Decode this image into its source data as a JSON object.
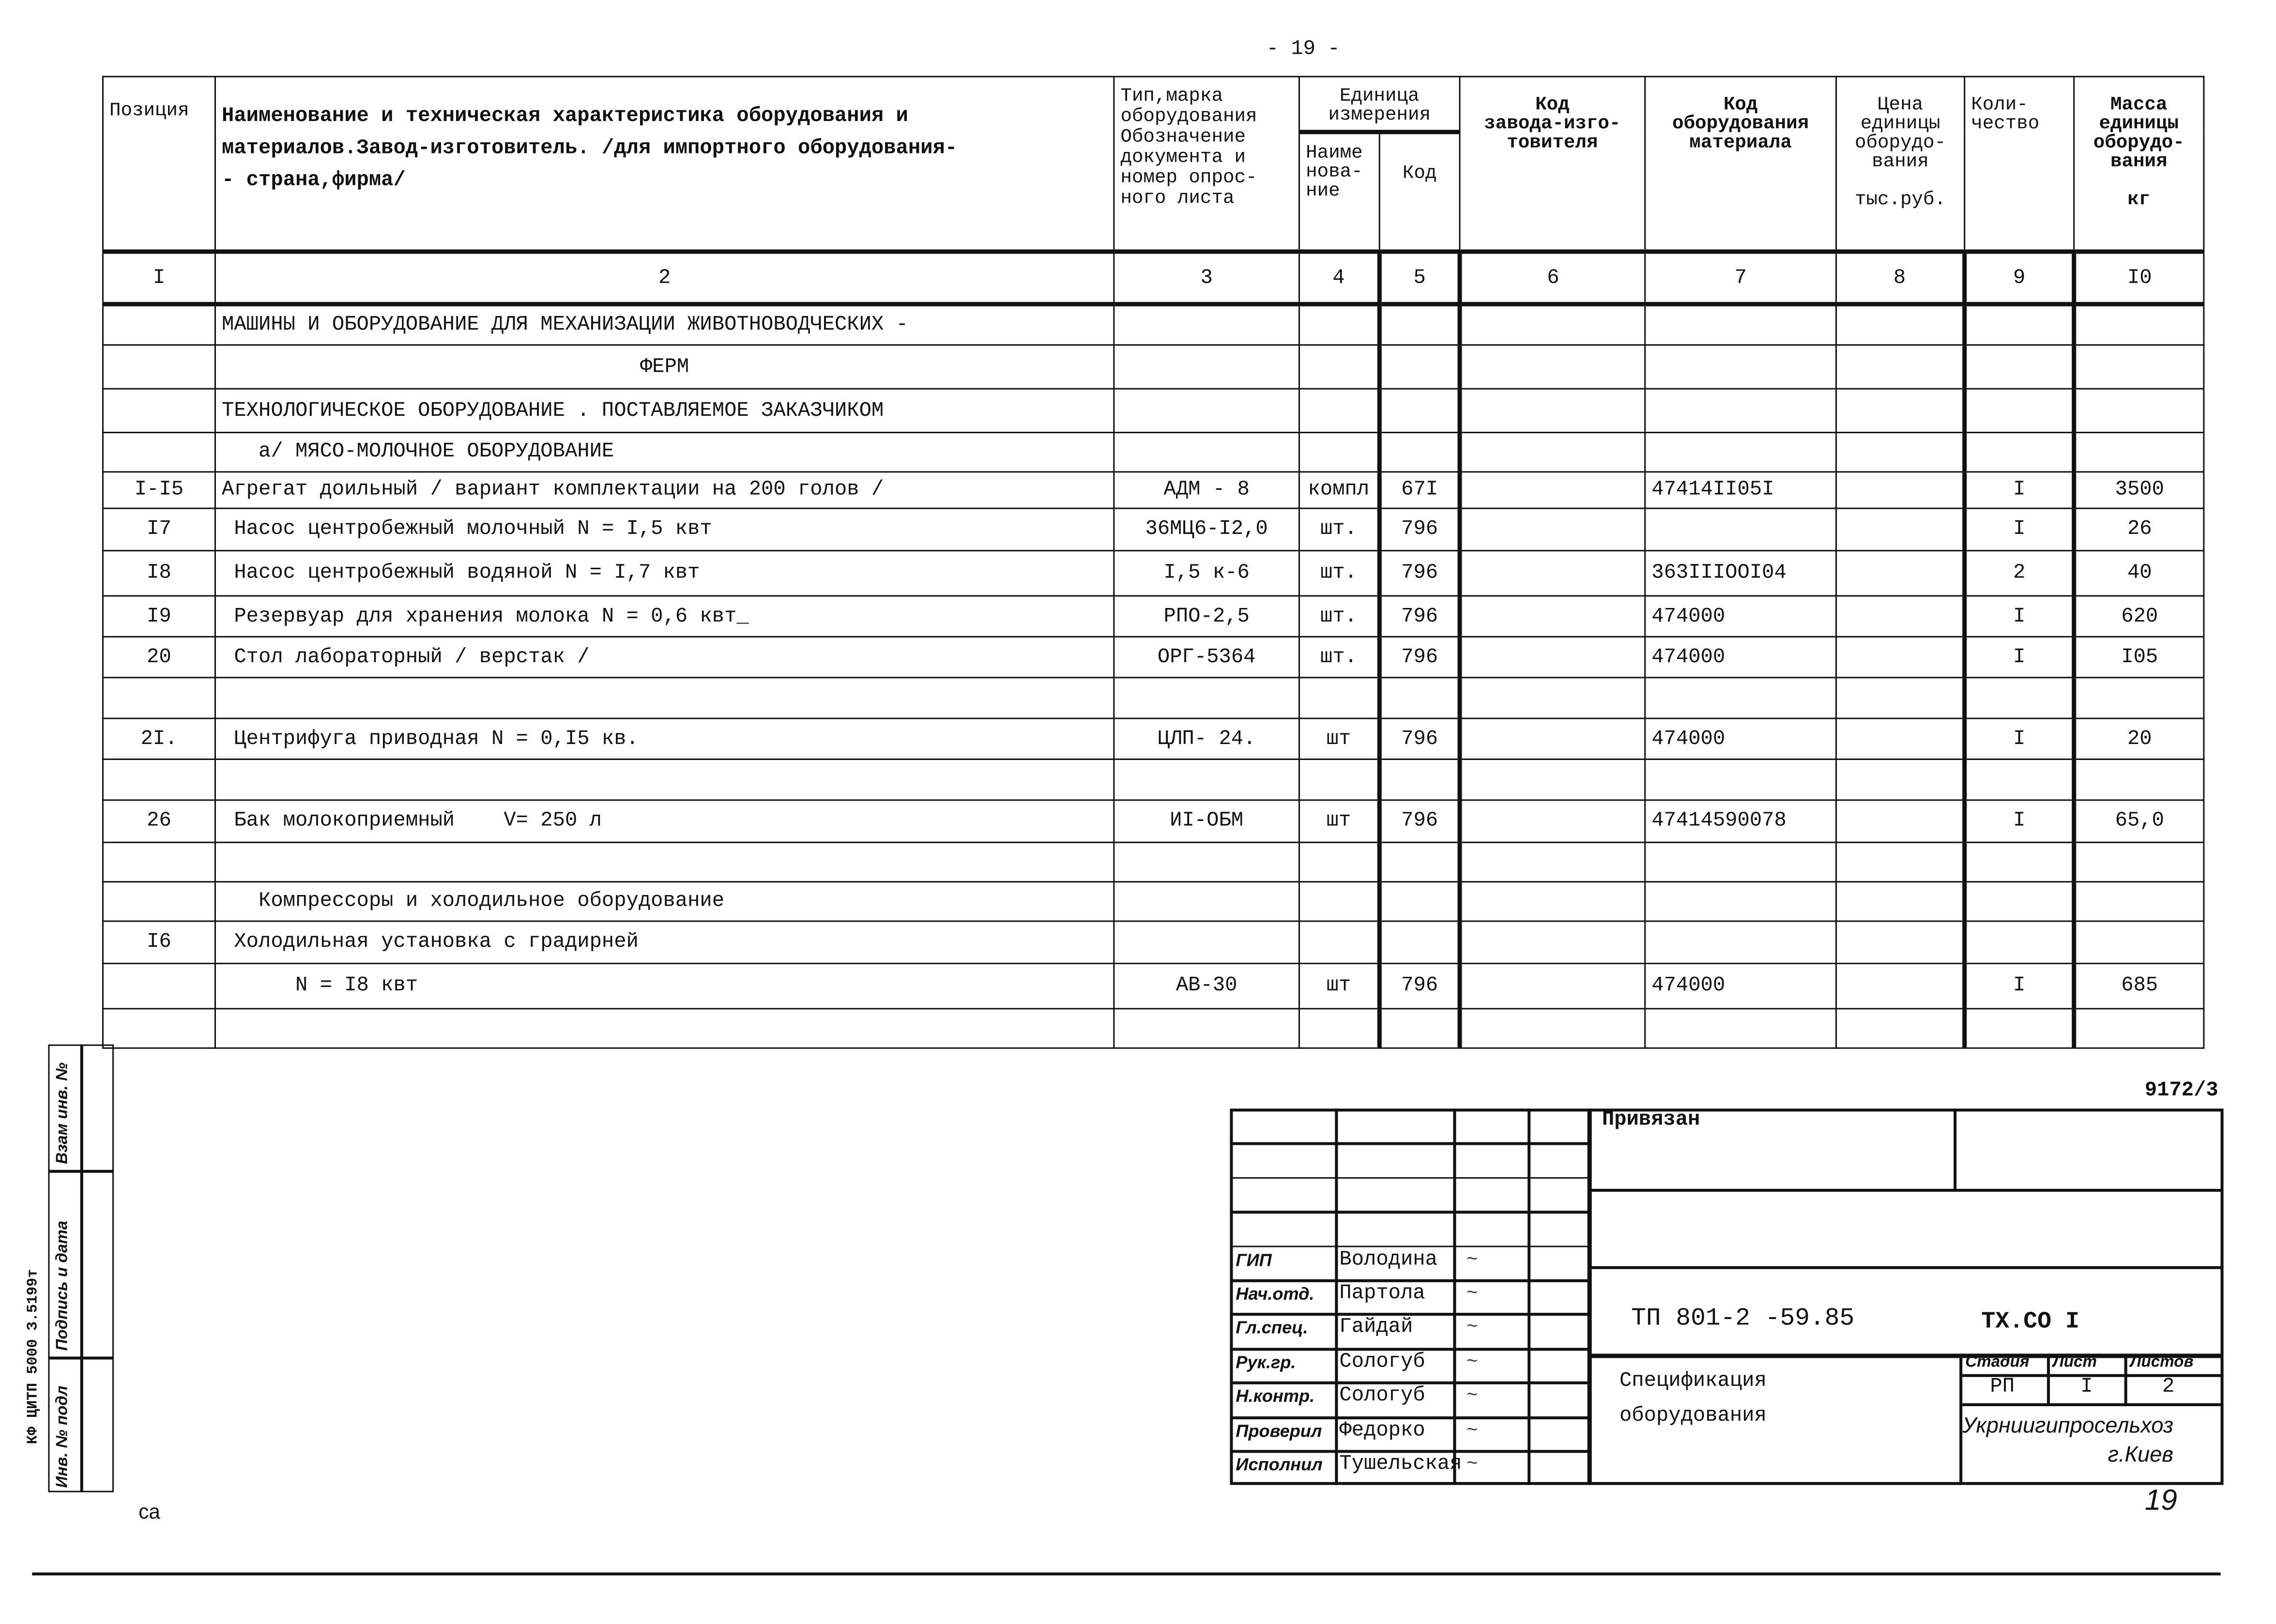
{
  "page_number_top": "- 19 -",
  "header": {
    "col1": "Позиция",
    "col2": "Наименование и техническая характеристика оборудования и\nматериалов.Завод-изготовитель. /для импортного оборудования-\n- страна,фирма/",
    "col3": "Тип,марка\nоборудования\nОбозначение\nдокумента и\nномер опрос-\nного листа",
    "col4_group": "Единица\nизмерения",
    "col4": "Наиме\nнова-\nние",
    "col5": "Код",
    "col6": "Код\nзавода-изго-\nтовителя",
    "col7": "Код\nоборудования\nматериала",
    "col8": "Цена\nединицы\nоборудо-\nвания\n\nтыс.руб.",
    "col9": "Коли-\nчество",
    "col10": "Масса\nединицы\nоборудо-\nвания\n\nкг"
  },
  "column_numbers": [
    "I",
    "2",
    "3",
    "4",
    "5",
    "6",
    "7",
    "8",
    "9",
    "I0"
  ],
  "rows": [
    {
      "pos": "",
      "name": "МАШИНЫ И ОБОРУДОВАНИЕ ДЛЯ МЕХАНИЗАЦИИ ЖИВОТНОВОДЧЕСКИХ -",
      "type": "",
      "unit": "",
      "code": "",
      "maker": "",
      "mat": "",
      "price": "",
      "qty": "",
      "mass": ""
    },
    {
      "pos": "",
      "name": "ФЕРМ",
      "center": true,
      "type": "",
      "unit": "",
      "code": "",
      "maker": "",
      "mat": "",
      "price": "",
      "qty": "",
      "mass": ""
    },
    {
      "pos": "",
      "name": "ТЕХНОЛОГИЧЕСКОЕ ОБОРУДОВАНИЕ . ПОСТАВЛЯЕМОЕ ЗАКАЗЧИКОМ",
      "type": "",
      "unit": "",
      "code": "",
      "maker": "",
      "mat": "",
      "price": "",
      "qty": "",
      "mass": ""
    },
    {
      "pos": "",
      "name": "   а/ МЯСО-МОЛОЧНОЕ ОБОРУДОВАНИЕ",
      "type": "",
      "unit": "",
      "code": "",
      "maker": "",
      "mat": "",
      "price": "",
      "qty": "",
      "mass": ""
    },
    {
      "pos": "I-I5",
      "name": "Агрегат доильный / вариант комплектации на 200 голов /",
      "type": "АДМ - 8",
      "unit": "компл",
      "code": "67I",
      "maker": "",
      "mat": "47414II05I",
      "price": "",
      "qty": "I",
      "mass": "3500"
    },
    {
      "pos": "I7",
      "name": " Насос центробежный молочный N = I,5 квт",
      "type": "36МЦ6-I2,0",
      "unit": "шт.",
      "code": "796",
      "maker": "",
      "mat": "",
      "price": "",
      "qty": "I",
      "mass": "26"
    },
    {
      "pos": "I8",
      "name": " Насос центробежный водяной N = I,7 квт",
      "type": "I,5 к-6",
      "unit": "шт.",
      "code": "796",
      "maker": "",
      "mat": "363IIIOOI04",
      "price": "",
      "qty": "2",
      "mass": "40"
    },
    {
      "pos": "I9",
      "name": " Резервуар для хранения молока N = 0,6 квт_",
      "type": "РПО-2,5",
      "unit": "шт.",
      "code": "796",
      "maker": "",
      "mat": "474000",
      "price": "",
      "qty": "I",
      "mass": "620"
    },
    {
      "pos": "20",
      "name": " Стол лабораторный / верстак /",
      "type": "ОРГ-5364",
      "unit": "шт.",
      "code": "796",
      "maker": "",
      "mat": "474000",
      "price": "",
      "qty": "I",
      "mass": "I05"
    },
    {
      "pos": "",
      "name": "",
      "type": "",
      "unit": "",
      "code": "",
      "maker": "",
      "mat": "",
      "price": "",
      "qty": "",
      "mass": ""
    },
    {
      "pos": "2I.",
      "name": " Центрифуга приводная N = 0,I5 кв.",
      "type": "ЦЛП- 24.",
      "unit": "шт",
      "code": "796",
      "maker": "",
      "mat": "474000",
      "price": "",
      "qty": "I",
      "mass": "20"
    },
    {
      "pos": "",
      "name": "",
      "type": "",
      "unit": "",
      "code": "",
      "maker": "",
      "mat": "",
      "price": "",
      "qty": "",
      "mass": ""
    },
    {
      "pos": "26",
      "name": " Бак молокоприемный    V= 250 л",
      "type": "ИI-ОБМ",
      "unit": "шт",
      "code": "796",
      "maker": "",
      "mat": "47414590078",
      "price": "",
      "qty": "I",
      "mass": "65,0"
    },
    {
      "pos": "",
      "name": "",
      "type": "",
      "unit": "",
      "code": "",
      "maker": "",
      "mat": "",
      "price": "",
      "qty": "",
      "mass": ""
    },
    {
      "pos": "",
      "name": "   Компрессоры и холодильное оборудование",
      "type": "",
      "unit": "",
      "code": "",
      "maker": "",
      "mat": "",
      "price": "",
      "qty": "",
      "mass": ""
    },
    {
      "pos": "I6",
      "name": " Холодильная установка с градирней",
      "type": "",
      "unit": "",
      "code": "",
      "maker": "",
      "mat": "",
      "price": "",
      "qty": "",
      "mass": ""
    },
    {
      "pos": "",
      "name": "      N = I8 квт",
      "type": "АВ-30",
      "unit": "шт",
      "code": "796",
      "maker": "",
      "mat": "474000",
      "price": "",
      "qty": "I",
      "mass": "685"
    },
    {
      "pos": "",
      "name": "",
      "type": "",
      "unit": "",
      "code": "",
      "maker": "",
      "mat": "",
      "price": "",
      "qty": "",
      "mass": ""
    }
  ],
  "sheet_ref": "9172/3",
  "title_block": {
    "attached_label": "Привязан",
    "designation": "ТП 801-2 -59.85",
    "code": "ТХ.СО I",
    "title": "Спецификация\nоборудования",
    "stage_label": "Стадия",
    "sheet_label": "Лист",
    "sheets_label": "Листов",
    "stage": "РП",
    "sheet": "I",
    "sheets": "2",
    "organization": "Укрниигипросельхоз\nг.Киев",
    "signers": [
      {
        "role": "ГИП",
        "name": "Володина"
      },
      {
        "role": "Нач.отд.",
        "name": "Партола"
      },
      {
        "role": "Гл.спец.",
        "name": "Гайдай"
      },
      {
        "role": "Рук.гр.",
        "name": "Сологуб"
      },
      {
        "role": "Н.контр.",
        "name": "Сологуб"
      },
      {
        "role": "Проверил",
        "name": "Федорко"
      },
      {
        "role": "Исполнил",
        "name": "Тушельская"
      }
    ]
  },
  "side_stamp": {
    "inv_label": "Инв. № подл",
    "sign_label": "Подпись и дата",
    "replace_label": "Взам инв. №",
    "archive_code": "КФ ЦИТП 5000 З.5199т"
  },
  "footer_left": "ca",
  "handwritten_page": "19"
}
